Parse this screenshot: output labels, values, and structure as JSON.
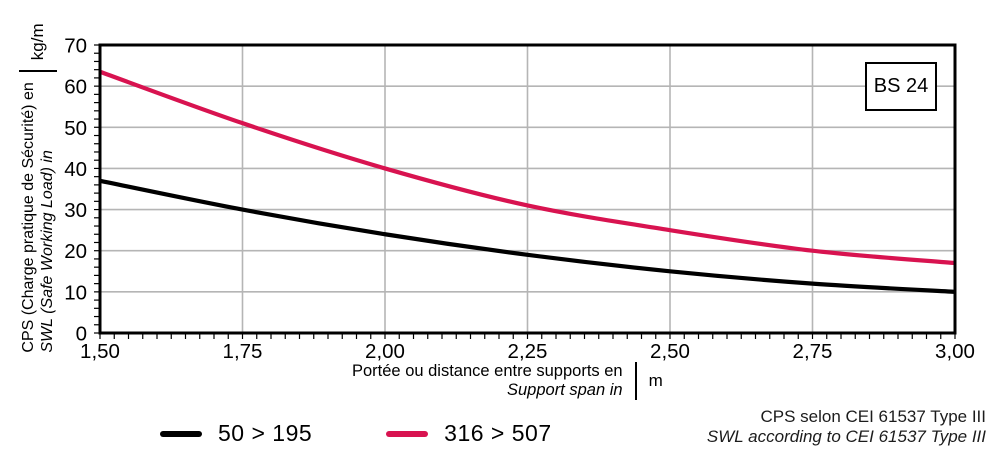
{
  "badge": {
    "label": "BS 24"
  },
  "y_axis": {
    "label_fr": "CPS (Charge pratique de Sécurité) en",
    "label_en": "SWL (Safe Working Load) in",
    "unit": "kg/m"
  },
  "x_axis": {
    "label_fr": "Portée ou distance entre supports en",
    "label_en": "Support span in",
    "unit": "m"
  },
  "legend": {
    "items": [
      {
        "label": "50 > 195",
        "color": "#000000"
      },
      {
        "label": "316 > 507",
        "color": "#d81350"
      }
    ]
  },
  "footnote": {
    "line1": "CPS selon CEI 61537 Type III",
    "line2": "SWL according to CEI 61537 Type III"
  },
  "chart_data": {
    "type": "line",
    "title": "",
    "xlabel": "Portée ou distance entre supports en / Support span in (m)",
    "ylabel": "CPS (Charge pratique de Sécurité) / SWL (Safe Working Load) (kg/m)",
    "xlim": [
      1.5,
      3.0
    ],
    "ylim": [
      0,
      70
    ],
    "x": [
      1.5,
      1.75,
      2.0,
      2.25,
      2.5,
      2.75,
      3.0
    ],
    "series": [
      {
        "name": "50 > 195",
        "color": "#000000",
        "values": [
          37,
          30,
          24,
          19,
          15,
          12,
          10
        ]
      },
      {
        "name": "316 > 507",
        "color": "#d81350",
        "values": [
          63.5,
          51,
          40,
          31,
          25,
          20,
          17
        ]
      }
    ],
    "x_ticks": [
      {
        "v": 1.5,
        "label": "1,50"
      },
      {
        "v": 1.75,
        "label": "1,75"
      },
      {
        "v": 2.0,
        "label": "2,00"
      },
      {
        "v": 2.25,
        "label": "2,25"
      },
      {
        "v": 2.5,
        "label": "2,50"
      },
      {
        "v": 2.75,
        "label": "2,75"
      },
      {
        "v": 3.0,
        "label": "3,00"
      }
    ],
    "y_ticks": [
      {
        "v": 0,
        "label": "0"
      },
      {
        "v": 10,
        "label": "10"
      },
      {
        "v": 20,
        "label": "20"
      },
      {
        "v": 30,
        "label": "30"
      },
      {
        "v": 40,
        "label": "40"
      },
      {
        "v": 50,
        "label": "50"
      },
      {
        "v": 60,
        "label": "60"
      },
      {
        "v": 70,
        "label": "70"
      }
    ],
    "grid": {
      "color": "#b5b5b5",
      "x_lines": [
        1.75,
        2.0,
        2.25,
        2.5,
        2.75
      ],
      "y_lines": [
        10,
        20,
        30,
        40,
        50,
        60
      ]
    },
    "x_minor_step": 0.025,
    "y_minor_step": 2,
    "legend_position": "bottom"
  }
}
